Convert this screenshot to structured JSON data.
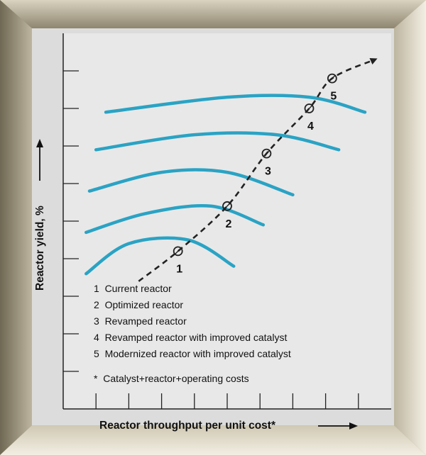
{
  "chart_data": {
    "type": "line",
    "title": "",
    "xlabel": "Reactor throughput per unit cost*",
    "ylabel": "Reactor yield, %",
    "grid": false,
    "xlim": [
      0,
      10
    ],
    "ylim": [
      0,
      10
    ],
    "series": [
      {
        "label": "1",
        "points": [
          [
            0.7,
            3.6
          ],
          [
            2.0,
            4.4
          ],
          [
            3.8,
            4.5
          ],
          [
            5.2,
            3.8
          ]
        ]
      },
      {
        "label": "2",
        "points": [
          [
            0.7,
            4.7
          ],
          [
            2.5,
            5.2
          ],
          [
            4.5,
            5.4
          ],
          [
            6.1,
            4.9
          ]
        ]
      },
      {
        "label": "3",
        "points": [
          [
            0.8,
            5.8
          ],
          [
            3.0,
            6.3
          ],
          [
            5.0,
            6.3
          ],
          [
            7.0,
            5.7
          ]
        ]
      },
      {
        "label": "4",
        "points": [
          [
            1.0,
            6.9
          ],
          [
            4.0,
            7.3
          ],
          [
            6.5,
            7.3
          ],
          [
            8.4,
            6.9
          ]
        ]
      },
      {
        "label": "5",
        "points": [
          [
            1.3,
            7.9
          ],
          [
            5.0,
            8.3
          ],
          [
            7.5,
            8.3
          ],
          [
            9.2,
            7.9
          ]
        ]
      }
    ],
    "trajectory": {
      "points": [
        [
          2.3,
          3.4
        ],
        [
          3.5,
          4.2
        ],
        [
          5.0,
          5.4
        ],
        [
          6.2,
          6.8
        ],
        [
          7.5,
          8.0
        ],
        [
          8.2,
          8.8
        ],
        [
          9.5,
          9.3
        ]
      ],
      "markers": [
        {
          "label": "1",
          "x": 3.5,
          "y": 4.2
        },
        {
          "label": "2",
          "x": 5.0,
          "y": 5.4
        },
        {
          "label": "3",
          "x": 6.2,
          "y": 6.8
        },
        {
          "label": "4",
          "x": 7.5,
          "y": 8.0
        },
        {
          "label": "5",
          "x": 8.2,
          "y": 8.8
        }
      ]
    },
    "legend": [
      "1  Current reactor",
      "2  Optimized reactor",
      "3  Revamped reactor",
      "4  Revamped reactor with improved catalyst",
      "5  Modernized reactor with improved catalyst"
    ],
    "footnote": "*  Catalyst+reactor+operating costs",
    "colors": {
      "curve": "#2aa3c4",
      "trajectory": "#222222",
      "frame": "#a39b86",
      "plot_bg": "#e8e8e8"
    }
  }
}
